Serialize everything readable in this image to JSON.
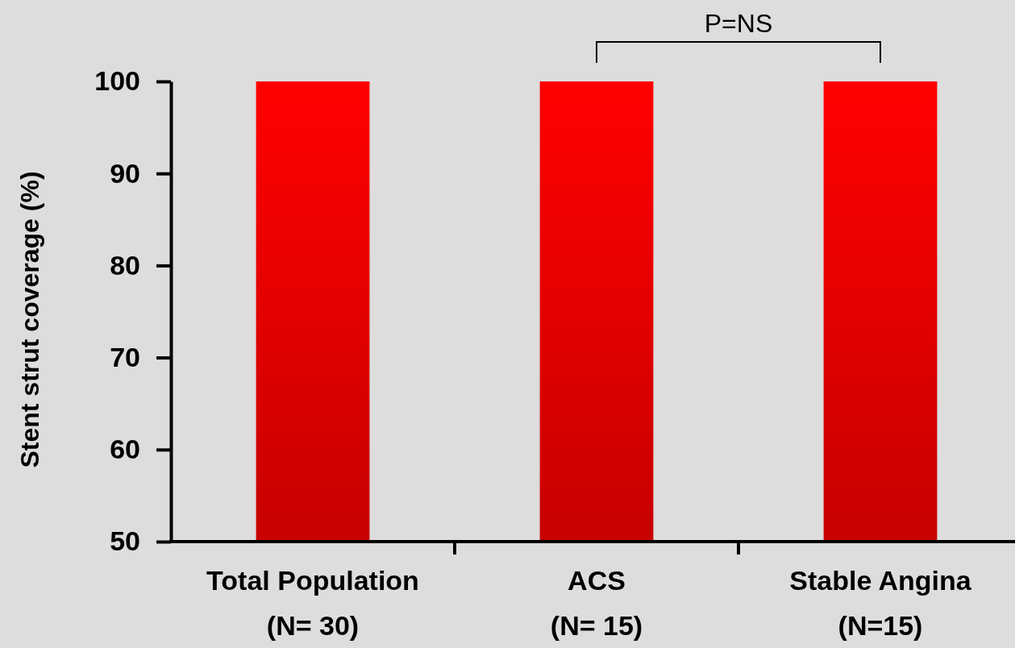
{
  "chart_data": {
    "type": "bar",
    "ylabel": "Stent strut coverage (%)",
    "categories": [
      "Total Population\n(N= 30)",
      "ACS\n(N= 15)",
      "Stable Angina\n(N=15)"
    ],
    "values": [
      100,
      100,
      100
    ],
    "color": "#ff0000",
    "ylim": [
      50,
      100
    ],
    "yticks": [
      50,
      60,
      70,
      80,
      90,
      100
    ],
    "annotations": [
      "P=NS"
    ],
    "grid": false
  }
}
